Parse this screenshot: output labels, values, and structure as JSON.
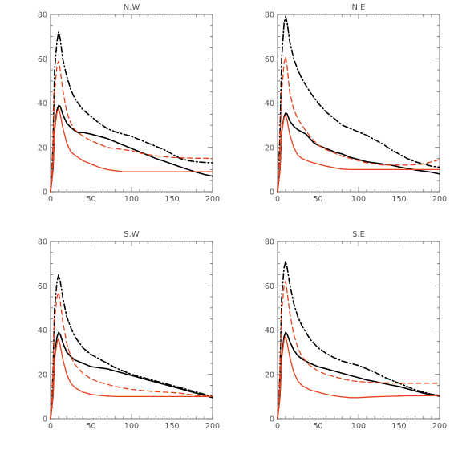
{
  "chart_data": [
    {
      "type": "line",
      "title": "N.W",
      "xlim": [
        0,
        200
      ],
      "ylim": [
        0,
        80
      ],
      "xticks": [
        0,
        50,
        100,
        150,
        200
      ],
      "yticks": [
        0,
        20,
        40,
        60,
        80
      ],
      "grid": false,
      "series": [
        {
          "style": "dash-dot",
          "color": "#000000",
          "x": [
            0,
            3,
            5,
            8,
            10,
            12,
            15,
            20,
            25,
            30,
            40,
            50,
            60,
            70,
            80,
            90,
            100,
            110,
            120,
            130,
            140,
            150,
            160,
            170,
            180,
            190,
            200
          ],
          "y": [
            0,
            20,
            55,
            68,
            72,
            69,
            60,
            52,
            46,
            42,
            37,
            34,
            31,
            28.5,
            27,
            26,
            25,
            23.5,
            22,
            20.5,
            19,
            17,
            15,
            14,
            13.5,
            13.2,
            13
          ]
        },
        {
          "style": "solid",
          "color": "#000000",
          "x": [
            0,
            3,
            5,
            8,
            10,
            12,
            15,
            20,
            25,
            30,
            35,
            40,
            50,
            60,
            70,
            80,
            90,
            100,
            110,
            120,
            130,
            140,
            150,
            160,
            170,
            180,
            190,
            200
          ],
          "y": [
            0,
            10,
            28,
            37,
            39,
            38.5,
            35,
            31,
            29,
            27.5,
            26.5,
            26.8,
            26,
            25,
            24,
            22.5,
            21,
            19.5,
            18,
            16.5,
            15,
            13.8,
            12.5,
            11.2,
            10,
            8.8,
            7.8,
            7
          ]
        },
        {
          "style": "dashed",
          "color": "#e8401c",
          "x": [
            0,
            3,
            5,
            8,
            10,
            12,
            15,
            20,
            25,
            30,
            40,
            50,
            60,
            70,
            80,
            90,
            100,
            110,
            120,
            130,
            140,
            150,
            160,
            170,
            180,
            190,
            200
          ],
          "y": [
            0,
            20,
            45,
            57,
            59,
            55,
            46,
            36,
            31,
            28,
            25,
            23,
            21.5,
            20,
            19.5,
            19,
            18.5,
            17.5,
            16.8,
            16.2,
            15.8,
            15.5,
            15.3,
            15.2,
            15.1,
            15.1,
            15
          ]
        },
        {
          "style": "solid",
          "color": "#e8401c",
          "x": [
            0,
            3,
            5,
            8,
            10,
            12,
            15,
            20,
            25,
            30,
            40,
            50,
            60,
            70,
            80,
            90,
            100,
            110,
            120,
            130,
            140,
            150,
            160,
            170,
            180,
            190,
            200
          ],
          "y": [
            0,
            10,
            28,
            36,
            37.5,
            35,
            29,
            22,
            18,
            16.5,
            14,
            12.5,
            11,
            10,
            9.5,
            9,
            9,
            9,
            9,
            9,
            9,
            9,
            9,
            9,
            9,
            9,
            9
          ]
        }
      ]
    },
    {
      "type": "line",
      "title": "N.E",
      "xlim": [
        0,
        200
      ],
      "ylim": [
        0,
        80
      ],
      "xticks": [
        0,
        50,
        100,
        150,
        200
      ],
      "yticks": [
        0,
        20,
        40,
        60,
        80
      ],
      "grid": false,
      "series": [
        {
          "style": "dash-dot",
          "color": "#000000",
          "x": [
            0,
            3,
            5,
            8,
            10,
            12,
            15,
            20,
            25,
            30,
            40,
            50,
            60,
            70,
            80,
            90,
            100,
            110,
            120,
            130,
            140,
            150,
            160,
            170,
            180,
            190,
            200
          ],
          "y": [
            0,
            25,
            60,
            76,
            79,
            76,
            68,
            60,
            55,
            51,
            45,
            40,
            36,
            33,
            30,
            28.5,
            27,
            25.5,
            23.5,
            21.5,
            19,
            17,
            15,
            13.5,
            12.5,
            11.5,
            11
          ]
        },
        {
          "style": "solid",
          "color": "#000000",
          "x": [
            0,
            3,
            5,
            8,
            10,
            12,
            15,
            20,
            25,
            30,
            35,
            40,
            45,
            50,
            60,
            70,
            80,
            90,
            100,
            110,
            120,
            130,
            140,
            150,
            160,
            170,
            180,
            190,
            200
          ],
          "y": [
            0,
            10,
            27,
            34,
            35.5,
            35,
            32,
            29.5,
            28,
            27,
            26,
            24,
            22,
            21,
            19.5,
            18,
            17,
            15.5,
            14.5,
            13.5,
            13,
            12.5,
            12,
            11.2,
            10.5,
            9.8,
            9.3,
            8.8,
            8
          ]
        },
        {
          "style": "dashed",
          "color": "#e8401c",
          "x": [
            0,
            3,
            5,
            8,
            10,
            12,
            15,
            20,
            25,
            30,
            40,
            50,
            60,
            70,
            80,
            90,
            100,
            110,
            120,
            130,
            140,
            150,
            160,
            170,
            180,
            190,
            200
          ],
          "y": [
            0,
            20,
            45,
            58,
            61,
            56,
            45,
            37,
            33,
            30,
            25,
            21,
            19,
            17.5,
            16,
            15,
            14,
            13,
            12.5,
            12,
            12,
            12,
            12,
            12.2,
            12.5,
            13.5,
            14.5
          ]
        },
        {
          "style": "solid",
          "color": "#e8401c",
          "x": [
            0,
            3,
            5,
            8,
            10,
            12,
            15,
            20,
            25,
            30,
            40,
            50,
            60,
            70,
            80,
            90,
            100,
            110,
            120,
            130,
            140,
            150,
            160,
            170,
            180,
            190,
            200
          ],
          "y": [
            0,
            10,
            27,
            33.5,
            34.5,
            32,
            26,
            20,
            16.5,
            15,
            13.5,
            12.5,
            11.5,
            10.8,
            10.2,
            10,
            10,
            10,
            10,
            10,
            10,
            10,
            10,
            10,
            10,
            10,
            10
          ]
        }
      ]
    },
    {
      "type": "line",
      "title": "S.W",
      "xlim": [
        0,
        200
      ],
      "ylim": [
        0,
        80
      ],
      "xticks": [
        0,
        50,
        100,
        150,
        200
      ],
      "yticks": [
        0,
        20,
        40,
        60,
        80
      ],
      "grid": false,
      "series": [
        {
          "style": "dash-dot",
          "color": "#000000",
          "x": [
            0,
            3,
            5,
            8,
            10,
            12,
            15,
            20,
            25,
            30,
            40,
            50,
            60,
            70,
            80,
            90,
            100,
            110,
            120,
            130,
            140,
            150,
            160,
            170,
            180,
            190,
            200
          ],
          "y": [
            0,
            20,
            50,
            62,
            65,
            62,
            55,
            46,
            41,
            37,
            32,
            29,
            27,
            25,
            23,
            21.5,
            20,
            19,
            18,
            17,
            16,
            15,
            14,
            13,
            12,
            11,
            10
          ]
        },
        {
          "style": "solid",
          "color": "#000000",
          "x": [
            0,
            3,
            5,
            8,
            10,
            12,
            15,
            20,
            25,
            30,
            40,
            50,
            60,
            70,
            80,
            90,
            100,
            110,
            120,
            130,
            140,
            150,
            160,
            170,
            180,
            190,
            200
          ],
          "y": [
            0,
            10,
            28,
            37,
            39,
            38,
            34.5,
            30,
            28,
            26.5,
            25,
            23.5,
            23,
            22.5,
            21.5,
            20.5,
            19.5,
            18.5,
            17.5,
            16.5,
            15.5,
            14.5,
            13.5,
            12.5,
            11.5,
            10.5,
            9.5
          ]
        },
        {
          "style": "dashed",
          "color": "#e8401c",
          "x": [
            0,
            3,
            5,
            8,
            10,
            12,
            15,
            20,
            25,
            30,
            40,
            50,
            60,
            70,
            80,
            90,
            100,
            110,
            120,
            130,
            140,
            150,
            160,
            170,
            180,
            190,
            200
          ],
          "y": [
            0,
            20,
            45,
            55,
            57,
            53,
            44,
            34,
            28,
            24.5,
            20.5,
            18,
            16.5,
            15.5,
            14.5,
            13.8,
            13.2,
            12.8,
            12.5,
            12.2,
            12,
            11.8,
            11.5,
            11,
            10.5,
            10.3,
            10
          ]
        },
        {
          "style": "solid",
          "color": "#e8401c",
          "x": [
            0,
            3,
            5,
            8,
            10,
            12,
            15,
            20,
            25,
            30,
            40,
            50,
            60,
            70,
            80,
            90,
            100,
            110,
            120,
            130,
            140,
            150,
            160,
            170,
            180,
            190,
            200
          ],
          "y": [
            0,
            10,
            27,
            34.5,
            36,
            33,
            27,
            20,
            16,
            14,
            12,
            11,
            10.5,
            10.2,
            10,
            10,
            10,
            10,
            10,
            10,
            10,
            10,
            10,
            10,
            10,
            10,
            10
          ]
        }
      ]
    },
    {
      "type": "line",
      "title": "S.E",
      "xlim": [
        0,
        200
      ],
      "ylim": [
        0,
        80
      ],
      "xticks": [
        0,
        50,
        100,
        150,
        200
      ],
      "yticks": [
        0,
        20,
        40,
        60,
        80
      ],
      "grid": false,
      "series": [
        {
          "style": "dash-dot",
          "color": "#000000",
          "x": [
            0,
            3,
            5,
            8,
            10,
            12,
            15,
            20,
            25,
            30,
            40,
            50,
            60,
            70,
            80,
            90,
            100,
            110,
            120,
            130,
            140,
            150,
            160,
            170,
            180,
            190,
            200
          ],
          "y": [
            0,
            20,
            55,
            68,
            71,
            68,
            61,
            52,
            46,
            42,
            36,
            32,
            29.5,
            27.5,
            26,
            25,
            24,
            22.5,
            21,
            19,
            17.5,
            16,
            14.5,
            13,
            12,
            11,
            10.5
          ]
        },
        {
          "style": "solid",
          "color": "#000000",
          "x": [
            0,
            3,
            5,
            8,
            10,
            12,
            15,
            20,
            25,
            30,
            40,
            50,
            60,
            70,
            80,
            90,
            100,
            110,
            120,
            130,
            140,
            150,
            160,
            170,
            180,
            190,
            200
          ],
          "y": [
            0,
            10,
            28,
            37,
            39,
            38,
            35,
            31,
            28.5,
            27,
            25,
            23.5,
            22.5,
            21.5,
            20.5,
            19.5,
            18.5,
            17.5,
            16.8,
            16,
            15.2,
            14.5,
            13.5,
            12.5,
            11.5,
            10.8,
            10.2
          ]
        },
        {
          "style": "dashed",
          "color": "#e8401c",
          "x": [
            0,
            3,
            5,
            8,
            10,
            12,
            15,
            20,
            25,
            30,
            40,
            50,
            60,
            70,
            80,
            90,
            100,
            110,
            120,
            130,
            140,
            150,
            160,
            170,
            180,
            190,
            200
          ],
          "y": [
            0,
            20,
            48,
            60,
            62,
            57,
            48,
            38,
            32,
            28,
            24,
            21.5,
            20,
            19,
            18,
            17.2,
            16.8,
            16.5,
            16.3,
            16.2,
            16.1,
            16,
            16,
            16,
            16,
            16,
            16
          ]
        },
        {
          "style": "solid",
          "color": "#e8401c",
          "x": [
            0,
            3,
            5,
            8,
            10,
            12,
            15,
            20,
            25,
            30,
            40,
            50,
            60,
            70,
            80,
            90,
            100,
            110,
            120,
            130,
            140,
            150,
            160,
            170,
            180,
            190,
            200
          ],
          "y": [
            0,
            10,
            27,
            35.5,
            37,
            34,
            28,
            21,
            17,
            15,
            13,
            12,
            11,
            10.3,
            9.8,
            9.5,
            9.5,
            9.7,
            9.9,
            10,
            10.1,
            10.2,
            10.3,
            10.3,
            10.4,
            10.4,
            10.5
          ]
        }
      ]
    }
  ]
}
